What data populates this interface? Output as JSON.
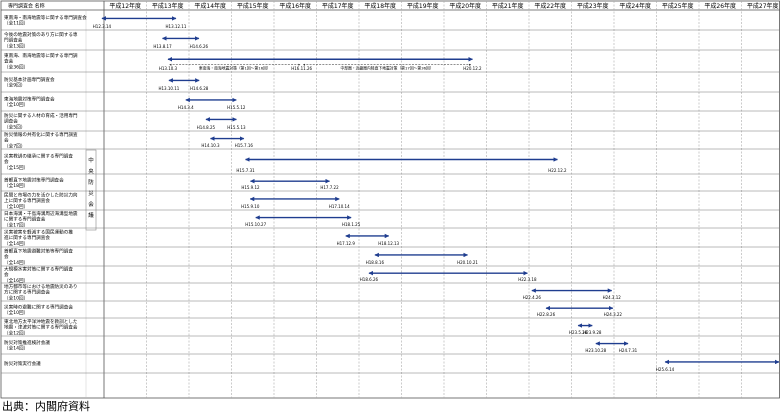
{
  "header": {
    "council_col": "専門調査会 名称",
    "years": [
      "平成12年度",
      "平成13年度",
      "平成14年度",
      "平成15年度",
      "平成16年度",
      "平成17年度",
      "平成18年度",
      "平成19年度",
      "平成20年度",
      "平成21年度",
      "平成22年度",
      "平成23年度",
      "平成24年度",
      "平成25年度",
      "平成26年度",
      "平成27年度"
    ]
  },
  "council_org": "中央防災会議",
  "source_note": "出典：内閣府資料",
  "rows": [
    {
      "name": [
        "東南海・南海地震等に関する専門調査会",
        "（全11回）"
      ],
      "bars": [
        {
          "start": "H12.3.14",
          "end": "H13.12.11"
        }
      ]
    },
    {
      "name": [
        "今後の地震対策のあり方に関する専",
        "門調査会",
        "（全13回）"
      ],
      "bars": [
        {
          "start": "H13.8.17",
          "end": "H14.6.26"
        }
      ]
    },
    {
      "name": [
        "東南海、南海地震等に関する専門調",
        "査会",
        "（全36回）"
      ],
      "bars": [
        {
          "start": "H13.10.3",
          "end": "H20.12.2"
        }
      ],
      "dashed": [
        {
          "from": "H13.10.3",
          "to": "H16.11.26",
          "label": "東南海・南海地震対策（第1回～第16回）"
        },
        {
          "from": "H16.11.26",
          "to": "H20.12.2",
          "label": "中部圏・近畿圏内陸直下地震対策（第17回～第36回）"
        }
      ],
      "extra_dates": [
        "H16.11.26"
      ]
    },
    {
      "name": [
        "防災基本計画専門調査会",
        "（全9回）"
      ],
      "bars": [
        {
          "start": "H13.10.11",
          "end": "H14.6.28"
        }
      ]
    },
    {
      "name": [
        "東海地震対策専門調査会",
        "（全10回）"
      ],
      "bars": [
        {
          "start": "H14.3.4",
          "end": "H15.5.12"
        }
      ]
    },
    {
      "name": [
        "防災に関する人材の育成・活用専門",
        "調査会",
        "（全5回）"
      ],
      "bars": [
        {
          "start": "H14.8.25",
          "end": "H15.5.13"
        }
      ]
    },
    {
      "name": [
        "防災情報の共有化に関する専門調査",
        "会",
        "（全7回）"
      ],
      "bars": [
        {
          "start": "H14.10.3",
          "end": "H15.7.16"
        }
      ]
    },
    {
      "name": [
        "災害教訓の継承に関する専門調査",
        "会",
        "（全15回）"
      ],
      "bars": [
        {
          "start": "H15.7.31",
          "end": "H22.12.2"
        }
      ]
    },
    {
      "name": [
        "首都直下地震対策専門調査会",
        "（全18回）"
      ],
      "bars": [
        {
          "start": "H15.9.12",
          "end": "H17.7.22"
        }
      ]
    },
    {
      "name": [
        "民間と市場の力を活かした防災力向",
        "上に関する専門調査会",
        "（全10回）"
      ],
      "bars": [
        {
          "start": "H15.9.10",
          "end": "H17.10.14"
        }
      ]
    },
    {
      "name": [
        "日本海溝・千島海溝周辺海溝型地震",
        "に関する専門調査会",
        "（全17回）"
      ],
      "bars": [
        {
          "start": "H15.10.27",
          "end": "H18.1.25"
        }
      ]
    },
    {
      "name": [
        "災害被害を軽減する国民運動の推",
        "進に関する専門調査会",
        "（全14回）"
      ],
      "bars": [
        {
          "start": "H17.12.9",
          "end": "H18.12.13"
        }
      ]
    },
    {
      "name": [
        "首都直下地震避難対策等専門調査",
        "会",
        "（全14回）"
      ],
      "bars": [
        {
          "start": "H18.8.16",
          "end": "H20.10.21"
        }
      ]
    },
    {
      "name": [
        "大規模水害対策に関する専門調査",
        "会",
        "（全16回）"
      ],
      "bars": [
        {
          "start": "H18.6.26",
          "end": "H22.3.18"
        }
      ]
    },
    {
      "name": [
        "地方都市等における地震防災のあり",
        "方に関する専門調査会",
        "（全10回）"
      ],
      "bars": [
        {
          "start": "H22.4.26",
          "end": "H24.3.12"
        }
      ]
    },
    {
      "name": [
        "災害時の避難に関する専門調査会",
        "（全10回）"
      ],
      "bars": [
        {
          "start": "H22.8.26",
          "end": "H24.3.22"
        }
      ]
    },
    {
      "name": [
        "東北地方太平洋沖地震を教訓とした",
        "地震・津波対策に関する専門調査会",
        "（全12回）"
      ],
      "bars": [
        {
          "start": "H23.5.28",
          "end": "H23.9.28"
        }
      ]
    },
    {
      "name": [
        "防災対策推進検討会議",
        "（全14回）"
      ],
      "bars": [
        {
          "start": "H23.10.28",
          "end": "H24.7.31"
        }
      ]
    },
    {
      "name": [
        "防災対策実行会議"
      ],
      "bars": [
        {
          "start": "H25.6.14",
          "end": null
        }
      ]
    }
  ]
}
